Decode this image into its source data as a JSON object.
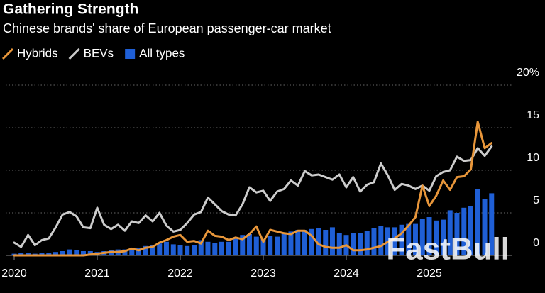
{
  "chart_data": {
    "type": "combo",
    "title": "Gathering Strength",
    "subtitle": "Chinese brands' share of European passenger-car market",
    "watermark": "FastBull",
    "x": [
      2020,
      2020.083,
      2020.167,
      2020.25,
      2020.333,
      2020.417,
      2020.5,
      2020.583,
      2020.667,
      2020.75,
      2020.833,
      2020.917,
      2021,
      2021.083,
      2021.167,
      2021.25,
      2021.333,
      2021.417,
      2021.5,
      2021.583,
      2021.667,
      2021.75,
      2021.833,
      2021.917,
      2022,
      2022.083,
      2022.167,
      2022.25,
      2022.333,
      2022.417,
      2022.5,
      2022.583,
      2022.667,
      2022.75,
      2022.833,
      2022.917,
      2023,
      2023.083,
      2023.167,
      2023.25,
      2023.333,
      2023.417,
      2023.5,
      2023.583,
      2023.667,
      2023.75,
      2023.833,
      2023.917,
      2024,
      2024.083,
      2024.167,
      2024.25,
      2024.333,
      2024.417,
      2024.5,
      2024.583,
      2024.667,
      2024.75,
      2024.833,
      2024.917,
      2025,
      2025.083,
      2025.167,
      2025.25,
      2025.333,
      2025.417,
      2025.5,
      2025.583,
      2025.667,
      2025.75
    ],
    "series": [
      {
        "name": "All types",
        "type": "bar",
        "color": "#1f5fd6",
        "values": [
          0.2,
          0.3,
          0.3,
          0.2,
          0.3,
          0.3,
          0.4,
          0.5,
          0.7,
          0.6,
          0.5,
          0.5,
          0.4,
          0.5,
          0.6,
          0.7,
          0.7,
          0.9,
          0.9,
          1.1,
          1.2,
          1.4,
          1.6,
          1.3,
          1.2,
          1.1,
          1.2,
          1.8,
          1.6,
          1.5,
          1.6,
          1.6,
          2.1,
          2.4,
          2.5,
          2.2,
          1.9,
          2.3,
          2.2,
          2.6,
          2.8,
          3.0,
          3.0,
          3.1,
          3.2,
          3.0,
          3.3,
          2.6,
          2.4,
          2.6,
          2.6,
          2.9,
          3.2,
          3.5,
          3.3,
          3.3,
          3.6,
          3.7,
          3.7,
          4.3,
          4.5,
          4.1,
          4.2,
          5.3,
          5.0,
          5.6,
          5.8,
          7.8,
          6.6,
          7.3
        ]
      },
      {
        "name": "BEVs",
        "type": "line",
        "color": "#cccccc",
        "values": [
          1.5,
          1.0,
          2.4,
          1.2,
          1.8,
          2.0,
          3.3,
          4.8,
          5.1,
          4.6,
          3.3,
          3.2,
          5.6,
          3.6,
          3.1,
          3.6,
          2.9,
          4.0,
          3.8,
          4.7,
          4.0,
          5.0,
          3.5,
          2.8,
          3.0,
          3.8,
          4.8,
          5.1,
          6.8,
          6.0,
          5.2,
          4.8,
          4.7,
          6.0,
          8.0,
          7.4,
          7.6,
          6.4,
          7.5,
          7.8,
          8.8,
          8.2,
          9.9,
          9.4,
          9.5,
          9.2,
          8.9,
          9.5,
          8.0,
          9.2,
          7.5,
          8.3,
          8.6,
          10.8,
          9.4,
          7.7,
          8.4,
          8.2,
          7.8,
          8.2,
          7.6,
          9.3,
          9.8,
          10.0,
          11.6,
          11.1,
          11.2,
          12.6,
          11.7,
          12.8
        ]
      },
      {
        "name": "Hybrids",
        "type": "line",
        "color": "#e8963a",
        "values": [
          0,
          0,
          0,
          0,
          0,
          0,
          0,
          0,
          0,
          0,
          0,
          0.1,
          0.2,
          0.3,
          0.4,
          0.4,
          0.5,
          0.8,
          0.6,
          0.9,
          1.0,
          1.5,
          1.8,
          2.2,
          2.4,
          1.6,
          1.7,
          1.4,
          2.9,
          2.3,
          2.2,
          1.8,
          2.1,
          1.9,
          2.5,
          3.4,
          1.6,
          3.0,
          2.8,
          2.6,
          2.5,
          2.9,
          2.9,
          2.3,
          1.3,
          1.0,
          0.9,
          0.9,
          1.2,
          0.6,
          0.6,
          0.7,
          0.9,
          1.1,
          1.6,
          2.0,
          2.6,
          3.5,
          4.5,
          8.2,
          5.8,
          7.0,
          8.8,
          7.7,
          9.2,
          9.3,
          10.1,
          15.7,
          12.6,
          13.2
        ]
      }
    ],
    "legend_order": [
      2,
      1,
      0
    ],
    "xlim": [
      2020,
      2025.75
    ],
    "xticks": [
      2020,
      2021,
      2022,
      2023,
      2024,
      2025
    ],
    "ylim": [
      0,
      20
    ],
    "yticks": [
      0,
      5,
      10,
      15,
      {
        "value": 20,
        "label": "20%"
      }
    ],
    "grid": true
  }
}
